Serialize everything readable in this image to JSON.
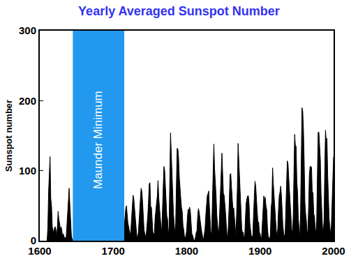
{
  "chart_data": {
    "type": "area",
    "title": "Yearly Averaged Sunspot Number",
    "y_label": "Sunspot number",
    "color": "#000000",
    "grid": false,
    "xlim": [
      1600,
      2000
    ],
    "xticks": [
      1600,
      1700,
      1800,
      1900,
      2000
    ],
    "ylim": [
      0,
      300
    ],
    "yticks": [
      0,
      100,
      200,
      300
    ],
    "bands": [
      {
        "label": "Maunder Minimum",
        "from": 1645,
        "to": 1715,
        "color": "#2299ee"
      }
    ],
    "x": [
      1610,
      1611,
      1612,
      1613,
      1614,
      1615,
      1616,
      1617,
      1618,
      1619,
      1620,
      1621,
      1622,
      1623,
      1624,
      1625,
      1626,
      1627,
      1628,
      1629,
      1630,
      1631,
      1632,
      1633,
      1634,
      1635,
      1636,
      1637,
      1638,
      1639,
      1640,
      1641,
      1642,
      1643,
      1644,
      1645,
      1646,
      1647,
      1648,
      1649,
      1650,
      1651,
      1652,
      1653,
      1654,
      1655,
      1656,
      1657,
      1658,
      1659,
      1660,
      1661,
      1662,
      1663,
      1664,
      1665,
      1666,
      1667,
      1668,
      1669,
      1670,
      1671,
      1672,
      1673,
      1674,
      1675,
      1676,
      1677,
      1678,
      1679,
      1680,
      1681,
      1682,
      1683,
      1684,
      1685,
      1686,
      1687,
      1688,
      1689,
      1690,
      1691,
      1692,
      1693,
      1694,
      1695,
      1696,
      1697,
      1698,
      1699,
      1700,
      1701,
      1702,
      1703,
      1704,
      1705,
      1706,
      1707,
      1708,
      1709,
      1710,
      1711,
      1712,
      1713,
      1714,
      1715,
      1716,
      1717,
      1718,
      1719,
      1720,
      1721,
      1722,
      1723,
      1724,
      1725,
      1726,
      1727,
      1728,
      1729,
      1730,
      1731,
      1732,
      1733,
      1734,
      1735,
      1736,
      1737,
      1738,
      1739,
      1740,
      1741,
      1742,
      1743,
      1744,
      1745,
      1746,
      1747,
      1748,
      1749,
      1750,
      1751,
      1752,
      1753,
      1754,
      1755,
      1756,
      1757,
      1758,
      1759,
      1760,
      1761,
      1762,
      1763,
      1764,
      1765,
      1766,
      1767,
      1768,
      1769,
      1770,
      1771,
      1772,
      1773,
      1774,
      1775,
      1776,
      1777,
      1778,
      1779,
      1780,
      1781,
      1782,
      1783,
      1784,
      1785,
      1786,
      1787,
      1788,
      1789,
      1790,
      1791,
      1792,
      1793,
      1794,
      1795,
      1796,
      1797,
      1798,
      1799,
      1800,
      1801,
      1802,
      1803,
      1804,
      1805,
      1806,
      1807,
      1808,
      1809,
      1810,
      1811,
      1812,
      1813,
      1814,
      1815,
      1816,
      1817,
      1818,
      1819,
      1820,
      1821,
      1822,
      1823,
      1824,
      1825,
      1826,
      1827,
      1828,
      1829,
      1830,
      1831,
      1832,
      1833,
      1834,
      1835,
      1836,
      1837,
      1838,
      1839,
      1840,
      1841,
      1842,
      1843,
      1844,
      1845,
      1846,
      1847,
      1848,
      1849,
      1850,
      1851,
      1852,
      1853,
      1854,
      1855,
      1856,
      1857,
      1858,
      1859,
      1860,
      1861,
      1862,
      1863,
      1864,
      1865,
      1866,
      1867,
      1868,
      1869,
      1870,
      1871,
      1872,
      1873,
      1874,
      1875,
      1876,
      1877,
      1878,
      1879,
      1880,
      1881,
      1882,
      1883,
      1884,
      1885,
      1886,
      1887,
      1888,
      1889,
      1890,
      1891,
      1892,
      1893,
      1894,
      1895,
      1896,
      1897,
      1898,
      1899,
      1900,
      1901,
      1902,
      1903,
      1904,
      1905,
      1906,
      1907,
      1908,
      1909,
      1910,
      1911,
      1912,
      1913,
      1914,
      1915,
      1916,
      1917,
      1918,
      1919,
      1920,
      1921,
      1922,
      1923,
      1924,
      1925,
      1926,
      1927,
      1928,
      1929,
      1930,
      1931,
      1932,
      1933,
      1934,
      1935,
      1936,
      1937,
      1938,
      1939,
      1940,
      1941,
      1942,
      1943,
      1944,
      1945,
      1946,
      1947,
      1948,
      1949,
      1950,
      1951,
      1952,
      1953,
      1954,
      1955,
      1956,
      1957,
      1958,
      1959,
      1960,
      1961,
      1962,
      1963,
      1964,
      1965,
      1966,
      1967,
      1968,
      1969,
      1970,
      1971,
      1972,
      1973,
      1974,
      1975,
      1976,
      1977,
      1978,
      1979,
      1980,
      1981,
      1982,
      1983,
      1984,
      1985,
      1986,
      1987,
      1988,
      1989,
      1990,
      1991,
      1992,
      1993,
      1994,
      1995,
      1996,
      1997,
      1998,
      1999,
      2000
    ],
    "values": [
      0,
      20,
      70,
      95,
      120,
      60,
      50,
      20,
      15,
      10,
      18,
      20,
      15,
      5,
      20,
      42,
      30,
      25,
      15,
      20,
      15,
      5,
      10,
      5,
      5,
      3,
      5,
      20,
      45,
      60,
      75,
      50,
      20,
      8,
      2,
      null,
      null,
      null,
      null,
      null,
      null,
      null,
      null,
      null,
      null,
      null,
      null,
      null,
      null,
      null,
      null,
      null,
      null,
      null,
      null,
      null,
      null,
      null,
      null,
      null,
      null,
      null,
      null,
      null,
      null,
      null,
      null,
      null,
      null,
      null,
      null,
      null,
      null,
      null,
      null,
      null,
      null,
      null,
      null,
      null,
      null,
      null,
      null,
      null,
      null,
      null,
      null,
      null,
      null,
      null,
      null,
      null,
      null,
      null,
      null,
      null,
      null,
      null,
      null,
      null,
      null,
      null,
      null,
      null,
      null,
      20,
      35,
      45,
      50,
      35,
      25,
      20,
      15,
      8,
      15,
      30,
      50,
      65,
      60,
      45,
      30,
      20,
      8,
      4,
      10,
      25,
      50,
      60,
      75,
      70,
      55,
      30,
      15,
      10,
      5,
      10,
      20,
      35,
      55,
      81,
      83,
      48,
      48,
      31,
      12,
      10,
      10,
      32,
      48,
      54,
      63,
      86,
      61,
      45,
      36,
      21,
      11,
      38,
      70,
      106,
      101,
      82,
      67,
      35,
      31,
      7,
      20,
      93,
      154,
      126,
      85,
      68,
      39,
      23,
      10,
      24,
      83,
      132,
      131,
      118,
      90,
      67,
      60,
      47,
      41,
      21,
      16,
      6,
      4,
      7,
      15,
      34,
      45,
      43,
      48,
      42,
      28,
      10,
      8,
      3,
      0,
      1,
      5,
      12,
      14,
      35,
      46,
      41,
      30,
      24,
      16,
      7,
      4,
      2,
      9,
      17,
      36,
      50,
      64,
      67,
      71,
      48,
      28,
      9,
      13,
      57,
      122,
      138,
      103,
      86,
      65,
      37,
      24,
      11,
      15,
      40,
      62,
      99,
      125,
      96,
      67,
      65,
      54,
      39,
      21,
      7,
      4,
      23,
      55,
      94,
      96,
      77,
      59,
      44,
      47,
      31,
      16,
      7,
      38,
      74,
      139,
      111,
      102,
      66,
      45,
      17,
      11,
      12,
      3,
      6,
      32,
      54,
      60,
      64,
      64,
      52,
      25,
      13,
      7,
      6,
      7,
      36,
      73,
      85,
      78,
      64,
      42,
      26,
      27,
      12,
      10,
      3,
      5,
      24,
      42,
      64,
      54,
      62,
      49,
      44,
      19,
      6,
      4,
      1,
      10,
      47,
      57,
      104,
      81,
      64,
      38,
      26,
      14,
      6,
      17,
      44,
      64,
      69,
      78,
      65,
      36,
      21,
      11,
      6,
      9,
      36,
      80,
      114,
      110,
      89,
      68,
      48,
      31,
      16,
      10,
      33,
      93,
      152,
      136,
      135,
      84,
      69,
      32,
      14,
      4,
      38,
      142,
      190,
      185,
      159,
      112,
      54,
      38,
      28,
      10,
      15,
      47,
      94,
      106,
      106,
      105,
      67,
      69,
      38,
      35,
      16,
      13,
      28,
      93,
      155,
      155,
      140,
      116,
      67,
      46,
      18,
      13,
      29,
      100,
      158,
      143,
      146,
      94,
      55,
      30,
      18,
      9,
      22,
      64,
      93,
      120
    ]
  }
}
